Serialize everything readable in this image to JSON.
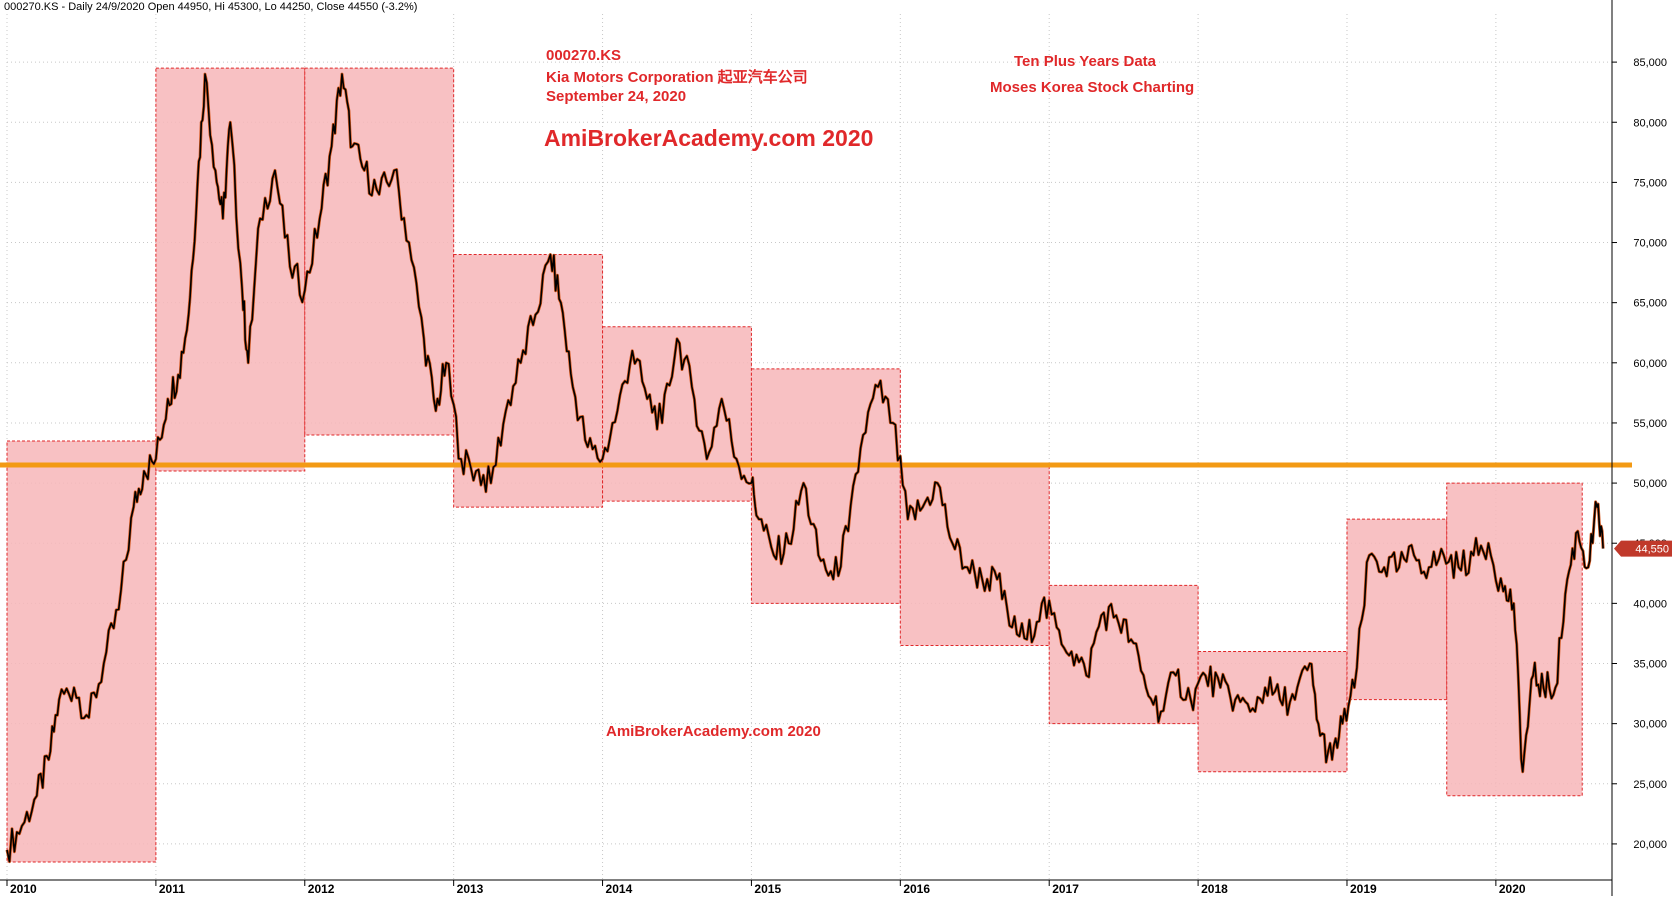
{
  "header": {
    "status_line": "000270.KS - Daily 24/9/2020 Open 44950, Hi 45300, Lo 44250, Close 44550 (-3.2%)"
  },
  "annotations": {
    "ticker": "000270.KS",
    "company": "Kia Motors Corporation 起亚汽车公司",
    "date": "September 24, 2020",
    "watermark_large": "AmiBrokerAcademy.com  2020",
    "watermark_small": "AmiBrokerAcademy.com  2020",
    "info_line1": "Ten Plus Years Data",
    "info_line2": "Moses Korea Stock Charting"
  },
  "colors": {
    "box_fill": "#f7b6b8",
    "box_stroke": "#e0282a",
    "support_line": "#f39a14",
    "annotation": "#e0282a",
    "candle_down": "#000000",
    "candle_up": "#d4581e",
    "grid": "#c8c8c8",
    "last_price_tag": "#c0392b"
  },
  "chart_data": {
    "type": "line",
    "title": "",
    "scale": "linear",
    "grid": true,
    "ylim": [
      17000,
      89000
    ],
    "y_ticks": [
      20000,
      25000,
      30000,
      35000,
      40000,
      45000,
      50000,
      55000,
      60000,
      65000,
      70000,
      75000,
      80000,
      85000
    ],
    "y_tick_labels": [
      "20,000",
      "25,000",
      "30,000",
      "35,000",
      "40,000",
      "45,000",
      "50,000",
      "55,000",
      "60,000",
      "65,000",
      "70,000",
      "75,000",
      "80,000",
      "85,000"
    ],
    "x_ticks": [
      2010,
      2011,
      2012,
      2013,
      2014,
      2015,
      2016,
      2017,
      2018,
      2019,
      2020
    ],
    "x_tick_labels": [
      "2010",
      "2011",
      "2012",
      "2013",
      "2014",
      "2015",
      "2016",
      "2017",
      "2018",
      "2019",
      "2020"
    ],
    "xlim": [
      2010.0,
      2020.78
    ],
    "last_price": 44550,
    "last_price_label": "44,550",
    "support_level": 51500,
    "series": [
      {
        "x": [
          2010.0,
          2010.1,
          2010.2,
          2010.28,
          2010.35,
          2010.45,
          2010.55,
          2010.65,
          2010.75,
          2010.85,
          2010.92,
          2011.0,
          2011.08,
          2011.15,
          2011.22,
          2011.28,
          2011.33,
          2011.4,
          2011.45,
          2011.5,
          2011.58,
          2011.62,
          2011.7,
          2011.8,
          2011.9,
          2012.0,
          2012.1,
          2012.18,
          2012.25,
          2012.32,
          2012.4,
          2012.5,
          2012.6,
          2012.7,
          2012.8,
          2012.88,
          2012.95,
          2013.05,
          2013.15,
          2013.25,
          2013.35,
          2013.45,
          2013.55,
          2013.65,
          2013.72,
          2013.8,
          2013.9,
          2014.0,
          2014.1,
          2014.2,
          2014.3,
          2014.4,
          2014.5,
          2014.6,
          2014.7,
          2014.8,
          2014.9,
          2015.0,
          2015.05,
          2015.15,
          2015.25,
          2015.35,
          2015.45,
          2015.55,
          2015.65,
          2015.75,
          2015.85,
          2015.95,
          2016.05,
          2016.15,
          2016.25,
          2016.35,
          2016.45,
          2016.55,
          2016.65,
          2016.75,
          2016.85,
          2016.95,
          2017.05,
          2017.15,
          2017.25,
          2017.35,
          2017.45,
          2017.55,
          2017.65,
          2017.75,
          2017.85,
          2017.95,
          2018.05,
          2018.15,
          2018.25,
          2018.35,
          2018.45,
          2018.55,
          2018.65,
          2018.75,
          2018.82,
          2018.9,
          2018.97,
          2019.05,
          2019.15,
          2019.25,
          2019.35,
          2019.45,
          2019.55,
          2019.65,
          2019.75,
          2019.85,
          2019.95,
          2020.05,
          2020.12,
          2020.18,
          2020.25,
          2020.32,
          2020.4,
          2020.48,
          2020.55,
          2020.62,
          2020.68,
          2020.72
        ],
        "values": [
          19500,
          21500,
          24000,
          27000,
          32000,
          33000,
          30500,
          35000,
          39500,
          48000,
          51000,
          52000,
          57000,
          59000,
          64000,
          75000,
          84000,
          76000,
          72000,
          80000,
          66000,
          60000,
          72000,
          76000,
          68000,
          66000,
          72000,
          78000,
          84000,
          78000,
          76000,
          74000,
          76000,
          70000,
          62000,
          56000,
          60000,
          52000,
          51000,
          50000,
          56000,
          60000,
          64000,
          69000,
          65000,
          58000,
          53000,
          52000,
          56000,
          61000,
          57000,
          55000,
          62000,
          58000,
          52000,
          57000,
          52000,
          50000,
          47000,
          44000,
          45000,
          50000,
          44000,
          42000,
          46000,
          54000,
          58000,
          55000,
          47000,
          48000,
          50000,
          45000,
          43000,
          42000,
          42000,
          38000,
          37000,
          40000,
          38000,
          36000,
          34000,
          39000,
          39000,
          37000,
          33000,
          31000,
          34000,
          32000,
          34000,
          33000,
          32000,
          31000,
          33000,
          32000,
          32000,
          35000,
          29000,
          27000,
          30000,
          33000,
          44000,
          43000,
          43000,
          44000,
          43000,
          44000,
          43000,
          44000,
          45000,
          41000,
          40000,
          26000,
          34000,
          33000,
          33000,
          42000,
          46000,
          43000,
          48000,
          44550
        ]
      }
    ],
    "zones": [
      {
        "x0": 2010.0,
        "x1": 2011.0,
        "y0": 18500,
        "y1": 53500
      },
      {
        "x0": 2011.0,
        "x1": 2012.0,
        "y0": 51000,
        "y1": 84500
      },
      {
        "x0": 2012.0,
        "x1": 2013.0,
        "y0": 54000,
        "y1": 84500
      },
      {
        "x0": 2013.0,
        "x1": 2014.0,
        "y0": 48000,
        "y1": 69000
      },
      {
        "x0": 2014.0,
        "x1": 2015.0,
        "y0": 48500,
        "y1": 63000
      },
      {
        "x0": 2015.0,
        "x1": 2016.0,
        "y0": 40000,
        "y1": 59500
      },
      {
        "x0": 2016.0,
        "x1": 2017.0,
        "y0": 36500,
        "y1": 51500
      },
      {
        "x0": 2017.0,
        "x1": 2018.0,
        "y0": 30000,
        "y1": 41500
      },
      {
        "x0": 2018.0,
        "x1": 2019.0,
        "y0": 26000,
        "y1": 36000
      },
      {
        "x0": 2019.0,
        "x1": 2019.67,
        "y0": 32000,
        "y1": 47000
      },
      {
        "x0": 2019.67,
        "x1": 2020.58,
        "y0": 24000,
        "y1": 50000
      }
    ]
  }
}
